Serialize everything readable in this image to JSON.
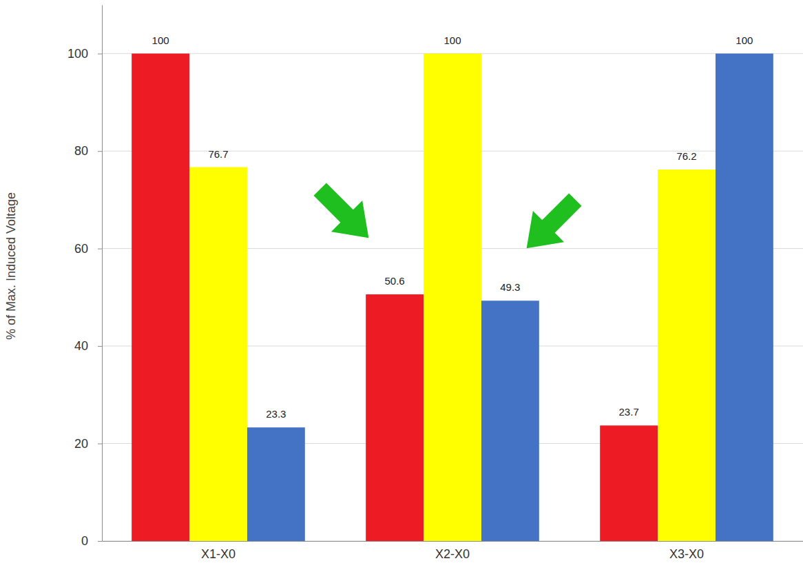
{
  "chart_data": {
    "type": "bar",
    "ylabel": "% of Max. Induced Voltage",
    "categories": [
      "X1-X0",
      "X2-X0",
      "X3-X0"
    ],
    "series": [
      {
        "color": "#ed1c24",
        "values": [
          100,
          50.6,
          23.7
        ]
      },
      {
        "color": "#ffff00",
        "values": [
          76.7,
          100,
          76.2
        ]
      },
      {
        "color": "#4472c4",
        "values": [
          23.3,
          49.3,
          100
        ]
      }
    ],
    "ylim": [
      0,
      110
    ],
    "yticks": [
      0,
      20,
      40,
      60,
      80,
      100
    ],
    "grid": true,
    "data_labels": true
  }
}
